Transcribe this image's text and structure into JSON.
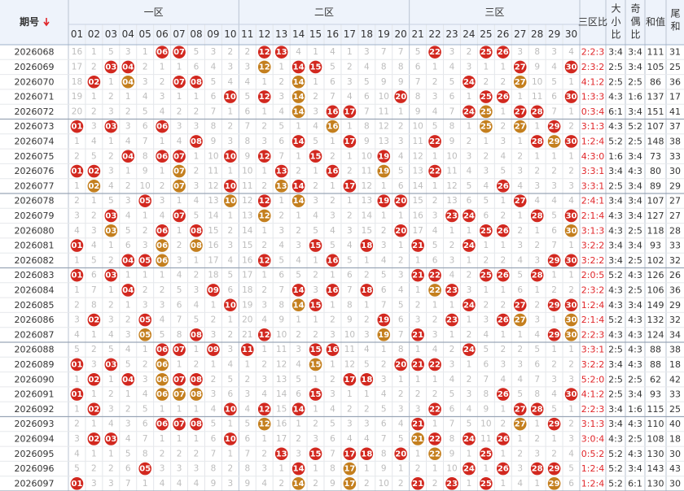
{
  "header": {
    "period": "期号",
    "zones": [
      "一区",
      "二区",
      "三区"
    ],
    "stats": [
      "三区比",
      "大小比",
      "奇偶比",
      "和值",
      "尾和"
    ]
  },
  "ball_colors": {
    "hit": "#d2281f",
    "repeat": "#c47f1e"
  },
  "number_columns": [
    {
      "header": "01",
      "cells": [
        16,
        17,
        18,
        19,
        20,
        "01",
        1,
        2,
        "01",
        1,
        2,
        3,
        4,
        "01",
        1,
        "01",
        1,
        2,
        3,
        4,
        5,
        "01",
        1,
        "01",
        1,
        2,
        3,
        4,
        5,
        "01"
      ]
    },
    {
      "header": "02",
      "cells": [
        1,
        2,
        "02",
        1,
        2,
        3,
        4,
        5,
        "02",
        "02",
        1,
        2,
        3,
        4,
        5,
        6,
        7,
        8,
        "02",
        1,
        2,
        3,
        "02",
        1,
        "02",
        1,
        "02",
        1,
        2,
        3
      ]
    },
    {
      "header": "03",
      "cells": [
        5,
        "03",
        1,
        2,
        3,
        "03",
        1,
        2,
        3,
        4,
        5,
        "03",
        "03",
        1,
        2,
        "03",
        1,
        2,
        3,
        4,
        5,
        "03",
        1,
        2,
        3,
        4,
        "03",
        1,
        2,
        3
      ]
    },
    {
      "header": "04",
      "cells": [
        3,
        "04",
        "04",
        1,
        2,
        3,
        4,
        "04",
        1,
        2,
        3,
        4,
        5,
        6,
        "04",
        1,
        "04",
        1,
        2,
        3,
        4,
        5,
        "04",
        1,
        2,
        3,
        4,
        5,
        6,
        7
      ]
    },
    {
      "header": "05",
      "cells": [
        1,
        2,
        3,
        4,
        5,
        6,
        7,
        8,
        9,
        10,
        "05",
        1,
        2,
        3,
        "05",
        1,
        2,
        3,
        "05",
        "05",
        1,
        2,
        3,
        4,
        5,
        6,
        7,
        8,
        "05",
        1
      ]
    },
    {
      "header": "06",
      "cells": [
        "06",
        1,
        2,
        3,
        4,
        "06",
        1,
        "06",
        1,
        2,
        3,
        4,
        "06",
        "06",
        "06",
        1,
        2,
        3,
        4,
        5,
        "06",
        "06",
        "06",
        "06",
        1,
        "06",
        1,
        2,
        3,
        4
      ]
    },
    {
      "header": "07",
      "cells": [
        "07",
        1,
        "07",
        1,
        2,
        3,
        4,
        "07",
        "07",
        "07",
        1,
        "07",
        1,
        2,
        3,
        4,
        5,
        6,
        7,
        8,
        "07",
        1,
        "07",
        "07",
        1,
        "07",
        1,
        2,
        3,
        4
      ]
    },
    {
      "header": "08",
      "cells": [
        5,
        6,
        "08",
        1,
        2,
        3,
        "08",
        1,
        2,
        3,
        4,
        5,
        "08",
        "08",
        1,
        2,
        3,
        4,
        5,
        "08",
        1,
        2,
        "08",
        "08",
        1,
        "08",
        1,
        2,
        3,
        4
      ]
    },
    {
      "header": "09",
      "cells": [
        3,
        4,
        5,
        6,
        7,
        8,
        9,
        10,
        11,
        12,
        13,
        14,
        15,
        16,
        17,
        18,
        "09",
        1,
        2,
        3,
        "09",
        1,
        2,
        3,
        4,
        5,
        6,
        7,
        8,
        9
      ]
    },
    {
      "header": "10",
      "cells": [
        2,
        3,
        4,
        "10",
        1,
        2,
        3,
        "10",
        1,
        "10",
        "10",
        1,
        2,
        3,
        4,
        5,
        6,
        "10",
        1,
        2,
        3,
        4,
        5,
        6,
        "10",
        1,
        "10",
        1,
        2,
        3
      ]
    },
    {
      "header": "11",
      "cells": [
        2,
        3,
        4,
        5,
        6,
        7,
        8,
        9,
        10,
        11,
        12,
        13,
        14,
        15,
        16,
        17,
        18,
        19,
        20,
        21,
        "11",
        1,
        2,
        3,
        4,
        5,
        6,
        7,
        8,
        9
      ]
    },
    {
      "header": "12",
      "cells": [
        "12",
        "12",
        1,
        "12",
        1,
        2,
        3,
        "12",
        1,
        2,
        "12",
        "12",
        1,
        2,
        "12",
        1,
        2,
        3,
        4,
        "12",
        1,
        2,
        3,
        4,
        "12",
        "12",
        1,
        2,
        3,
        4
      ]
    },
    {
      "header": "13",
      "cells": [
        "13",
        1,
        2,
        3,
        4,
        5,
        6,
        7,
        "13",
        "13",
        1,
        2,
        3,
        4,
        5,
        6,
        7,
        8,
        9,
        10,
        11,
        12,
        13,
        14,
        15,
        16,
        17,
        "13",
        1,
        2
      ]
    },
    {
      "header": "14",
      "cells": [
        4,
        "14",
        "14",
        "14",
        "14",
        1,
        "14",
        1,
        2,
        "14",
        "14",
        1,
        2,
        3,
        4,
        5,
        "14",
        "14",
        1,
        2,
        3,
        4,
        5,
        6,
        "14",
        1,
        2,
        3,
        "14",
        "14"
      ]
    },
    {
      "header": "15",
      "cells": [
        1,
        "15",
        1,
        2,
        3,
        4,
        5,
        "15",
        1,
        2,
        3,
        4,
        5,
        "15",
        1,
        2,
        3,
        "15",
        1,
        2,
        "15",
        "15",
        1,
        "15",
        1,
        2,
        3,
        "15",
        1,
        2
      ]
    },
    {
      "header": "16",
      "cells": [
        4,
        5,
        6,
        7,
        "16",
        "16",
        1,
        2,
        "16",
        1,
        2,
        3,
        4,
        5,
        "16",
        1,
        "16",
        1,
        2,
        3,
        "16",
        1,
        2,
        3,
        4,
        5,
        6,
        7,
        8,
        9
      ]
    },
    {
      "header": "17",
      "cells": [
        1,
        2,
        3,
        4,
        "17",
        1,
        "17",
        1,
        2,
        "17",
        1,
        2,
        3,
        4,
        5,
        6,
        7,
        8,
        9,
        10,
        11,
        12,
        "17",
        1,
        2,
        3,
        4,
        "17",
        "17",
        "17"
      ]
    },
    {
      "header": "18",
      "cells": [
        3,
        4,
        5,
        6,
        7,
        8,
        9,
        10,
        11,
        12,
        13,
        14,
        15,
        "18",
        1,
        2,
        "18",
        1,
        2,
        3,
        4,
        5,
        "18",
        1,
        2,
        3,
        4,
        "18",
        1,
        2
      ]
    },
    {
      "header": "19",
      "cells": [
        7,
        8,
        9,
        10,
        11,
        12,
        13,
        "19",
        "19",
        1,
        "19",
        1,
        2,
        3,
        4,
        5,
        6,
        7,
        "19",
        "19",
        1,
        2,
        3,
        4,
        5,
        6,
        7,
        8,
        9,
        10
      ]
    },
    {
      "header": "20",
      "cells": [
        7,
        8,
        9,
        "20",
        1,
        2,
        3,
        4,
        5,
        6,
        "20",
        1,
        "20",
        1,
        2,
        3,
        4,
        5,
        6,
        7,
        8,
        "20",
        1,
        2,
        3,
        4,
        5,
        "20",
        1,
        2
      ]
    },
    {
      "header": "21",
      "cells": [
        5,
        6,
        7,
        8,
        9,
        10,
        11,
        12,
        13,
        14,
        15,
        16,
        17,
        "21",
        1,
        "21",
        1,
        2,
        3,
        "21",
        1,
        "21",
        1,
        2,
        3,
        "21",
        "21",
        1,
        2,
        "21"
      ]
    },
    {
      "header": "22",
      "cells": [
        "22",
        1,
        2,
        3,
        4,
        5,
        "22",
        1,
        "22",
        1,
        2,
        3,
        4,
        5,
        6,
        "22",
        "22",
        1,
        2,
        3,
        4,
        "22",
        1,
        2,
        "22",
        1,
        "22",
        "22",
        1,
        2
      ]
    },
    {
      "header": "23",
      "cells": [
        3,
        4,
        5,
        6,
        7,
        8,
        9,
        10,
        11,
        12,
        13,
        "23",
        1,
        2,
        3,
        4,
        "23",
        1,
        "23",
        1,
        2,
        3,
        4,
        5,
        6,
        7,
        8,
        9,
        10,
        "23"
      ]
    },
    {
      "header": "24",
      "cells": [
        2,
        3,
        "24",
        1,
        "24",
        1,
        2,
        3,
        4,
        5,
        6,
        "24",
        1,
        "24",
        1,
        2,
        3,
        "24",
        1,
        2,
        "24",
        1,
        2,
        3,
        4,
        5,
        "24",
        1,
        "24",
        1
      ]
    },
    {
      "header": "25",
      "cells": [
        "25",
        1,
        2,
        "25",
        "25",
        "25",
        1,
        2,
        3,
        4,
        5,
        6,
        "25",
        1,
        2,
        "25",
        1,
        2,
        3,
        4,
        5,
        6,
        7,
        8,
        9,
        10,
        11,
        "25",
        1,
        "25"
      ]
    },
    {
      "header": "26",
      "cells": [
        "26",
        1,
        2,
        "26",
        1,
        2,
        3,
        4,
        5,
        "26",
        1,
        2,
        "26",
        1,
        2,
        "26",
        1,
        2,
        "26",
        1,
        2,
        3,
        4,
        "26",
        1,
        2,
        "26",
        1,
        "26",
        1
      ]
    },
    {
      "header": "27",
      "cells": [
        3,
        "27",
        "27",
        1,
        "27",
        "27",
        1,
        2,
        3,
        4,
        "27",
        1,
        2,
        3,
        4,
        5,
        6,
        "27",
        "27",
        1,
        2,
        3,
        4,
        5,
        "27",
        "27",
        1,
        2,
        3,
        4
      ]
    },
    {
      "header": "28",
      "cells": [
        8,
        9,
        10,
        11,
        "28",
        1,
        "28",
        1,
        2,
        3,
        4,
        "28",
        1,
        2,
        3,
        "28",
        1,
        2,
        3,
        4,
        5,
        6,
        7,
        8,
        "28",
        1,
        2,
        3,
        "28",
        1
      ]
    },
    {
      "header": "29",
      "cells": [
        3,
        4,
        5,
        6,
        7,
        "29",
        "29",
        1,
        2,
        3,
        4,
        5,
        6,
        7,
        "29",
        1,
        2,
        "29",
        1,
        "29",
        1,
        2,
        3,
        4,
        5,
        "29",
        1,
        2,
        "29",
        "29"
      ]
    },
    {
      "header": "30",
      "cells": [
        4,
        "30",
        1,
        "30",
        1,
        2,
        "30",
        1,
        2,
        3,
        4,
        "30",
        "30",
        1,
        "30",
        1,
        2,
        "30",
        "30",
        "30",
        1,
        2,
        3,
        "30",
        1,
        2,
        3,
        4,
        5,
        6
      ]
    }
  ],
  "rows": [
    {
      "period": "2026068",
      "zone_ratio": "2:2:3",
      "size_ratio": "3:4",
      "parity_ratio": "3:4",
      "sum": 111,
      "tail_sum": 31
    },
    {
      "period": "2026069",
      "zone_ratio": "2:3:2",
      "size_ratio": "2:5",
      "parity_ratio": "3:4",
      "sum": 105,
      "tail_sum": 25
    },
    {
      "period": "2026070",
      "zone_ratio": "4:1:2",
      "size_ratio": "2:5",
      "parity_ratio": "2:5",
      "sum": 86,
      "tail_sum": 36
    },
    {
      "period": "2026071",
      "zone_ratio": "1:3:3",
      "size_ratio": "4:3",
      "parity_ratio": "1:6",
      "sum": 137,
      "tail_sum": 17
    },
    {
      "period": "2026072",
      "zone_ratio": "0:3:4",
      "size_ratio": "6:1",
      "parity_ratio": "3:4",
      "sum": 151,
      "tail_sum": 41
    },
    {
      "period": "2026073",
      "zone_ratio": "3:1:3",
      "size_ratio": "4:3",
      "parity_ratio": "5:2",
      "sum": 107,
      "tail_sum": 37
    },
    {
      "period": "2026074",
      "zone_ratio": "1:2:4",
      "size_ratio": "5:2",
      "parity_ratio": "2:5",
      "sum": 148,
      "tail_sum": 38
    },
    {
      "period": "2026075",
      "zone_ratio": "4:3:0",
      "size_ratio": "1:6",
      "parity_ratio": "3:4",
      "sum": 73,
      "tail_sum": 33
    },
    {
      "period": "2026076",
      "zone_ratio": "3:3:1",
      "size_ratio": "3:4",
      "parity_ratio": "4:3",
      "sum": 80,
      "tail_sum": 30
    },
    {
      "period": "2026077",
      "zone_ratio": "3:3:1",
      "size_ratio": "2:5",
      "parity_ratio": "3:4",
      "sum": 89,
      "tail_sum": 29
    },
    {
      "period": "2026078",
      "zone_ratio": "2:4:1",
      "size_ratio": "3:4",
      "parity_ratio": "3:4",
      "sum": 107,
      "tail_sum": 27
    },
    {
      "period": "2026079",
      "zone_ratio": "2:1:4",
      "size_ratio": "4:3",
      "parity_ratio": "3:4",
      "sum": 127,
      "tail_sum": 27
    },
    {
      "period": "2026080",
      "zone_ratio": "3:1:3",
      "size_ratio": "4:3",
      "parity_ratio": "2:5",
      "sum": 118,
      "tail_sum": 28
    },
    {
      "period": "2026081",
      "zone_ratio": "3:2:2",
      "size_ratio": "3:4",
      "parity_ratio": "3:4",
      "sum": 93,
      "tail_sum": 33
    },
    {
      "period": "2026082",
      "zone_ratio": "3:2:2",
      "size_ratio": "3:4",
      "parity_ratio": "2:5",
      "sum": 102,
      "tail_sum": 32
    },
    {
      "period": "2026083",
      "zone_ratio": "2:0:5",
      "size_ratio": "5:2",
      "parity_ratio": "4:3",
      "sum": 126,
      "tail_sum": 26
    },
    {
      "period": "2026084",
      "zone_ratio": "2:3:2",
      "size_ratio": "4:3",
      "parity_ratio": "2:5",
      "sum": 106,
      "tail_sum": 36
    },
    {
      "period": "2026085",
      "zone_ratio": "1:2:4",
      "size_ratio": "4:3",
      "parity_ratio": "3:4",
      "sum": 149,
      "tail_sum": 29
    },
    {
      "period": "2026086",
      "zone_ratio": "2:1:4",
      "size_ratio": "5:2",
      "parity_ratio": "4:3",
      "sum": 132,
      "tail_sum": 32
    },
    {
      "period": "2026087",
      "zone_ratio": "2:2:3",
      "size_ratio": "4:3",
      "parity_ratio": "4:3",
      "sum": 124,
      "tail_sum": 34
    },
    {
      "period": "2026088",
      "zone_ratio": "3:3:1",
      "size_ratio": "2:5",
      "parity_ratio": "4:3",
      "sum": 88,
      "tail_sum": 38
    },
    {
      "period": "2026089",
      "zone_ratio": "3:2:2",
      "size_ratio": "3:4",
      "parity_ratio": "4:3",
      "sum": 88,
      "tail_sum": 18
    },
    {
      "period": "2026090",
      "zone_ratio": "5:2:0",
      "size_ratio": "2:5",
      "parity_ratio": "2:5",
      "sum": 62,
      "tail_sum": 42
    },
    {
      "period": "2026091",
      "zone_ratio": "4:1:2",
      "size_ratio": "2:5",
      "parity_ratio": "3:4",
      "sum": 93,
      "tail_sum": 33
    },
    {
      "period": "2026092",
      "zone_ratio": "2:2:3",
      "size_ratio": "3:4",
      "parity_ratio": "1:6",
      "sum": 115,
      "tail_sum": 25
    },
    {
      "period": "2026093",
      "zone_ratio": "3:1:3",
      "size_ratio": "3:4",
      "parity_ratio": "4:3",
      "sum": 110,
      "tail_sum": 40
    },
    {
      "period": "2026094",
      "zone_ratio": "3:0:4",
      "size_ratio": "4:3",
      "parity_ratio": "2:5",
      "sum": 108,
      "tail_sum": 18
    },
    {
      "period": "2026095",
      "zone_ratio": "0:5:2",
      "size_ratio": "5:2",
      "parity_ratio": "4:3",
      "sum": 130,
      "tail_sum": 30
    },
    {
      "period": "2026096",
      "zone_ratio": "1:2:4",
      "size_ratio": "5:2",
      "parity_ratio": "3:4",
      "sum": 143,
      "tail_sum": 43
    },
    {
      "period": "2026097",
      "zone_ratio": "1:2:4",
      "size_ratio": "5:2",
      "parity_ratio": "6:1",
      "sum": 130,
      "tail_sum": 30
    }
  ]
}
